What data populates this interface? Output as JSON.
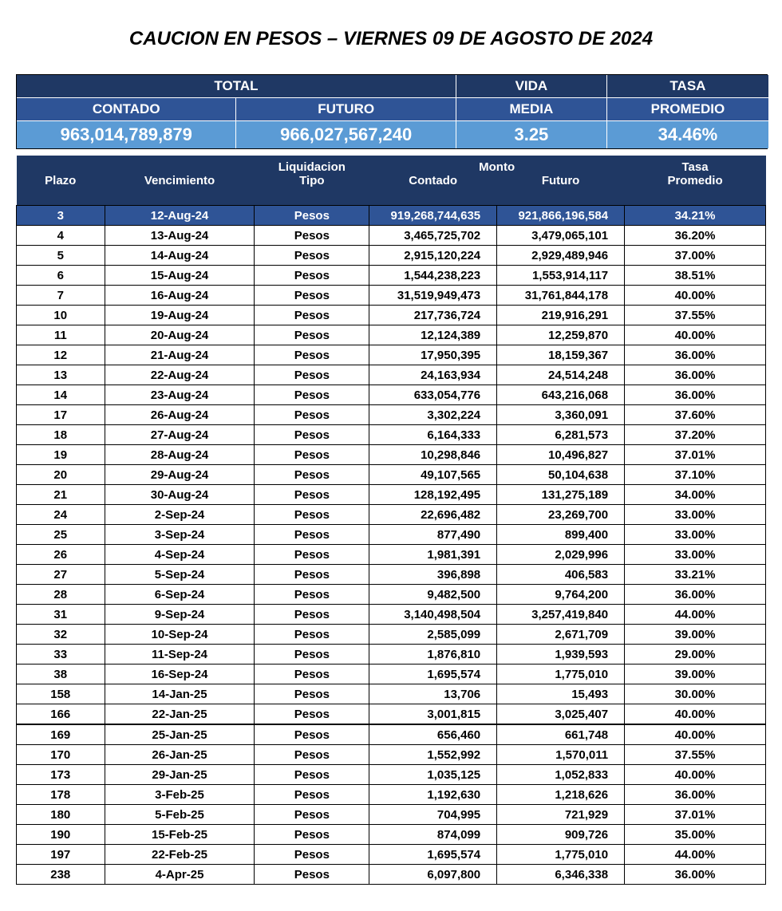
{
  "title": "CAUCION EN PESOS – VIERNES 09 DE AGOSTO DE 2024",
  "summary": {
    "total_label": "TOTAL",
    "contado_label": "CONTADO",
    "futuro_label": "FUTURO",
    "vida_label": "VIDA",
    "media_label": "MEDIA",
    "tasa_label": "TASA",
    "promedio_label": "PROMEDIO",
    "contado_value": "963,014,789,879",
    "futuro_value": "966,027,567,240",
    "vida_value": "3.25",
    "tasa_value": "34.46%",
    "colors": {
      "header_dark_bg": "#1f3864",
      "header_med_bg": "#2f5496",
      "value_bg": "#5b9bd5",
      "text_white": "#ffffff"
    }
  },
  "table": {
    "headers": {
      "plazo": "Plazo",
      "vencimiento": "Vencimiento",
      "liquidacion": "Liquidacion",
      "tipo": "Tipo",
      "monto": "Monto",
      "contado": "Contado",
      "futuro": "Futuro",
      "tasa": "Tasa",
      "promedio": "Promedio"
    },
    "header_bg": "#1f3864",
    "highlight_bg": "#2f5496",
    "rows": [
      {
        "plazo": "3",
        "venc": "12-Aug-24",
        "tipo": "Pesos",
        "cont": "919,268,744,635",
        "fut": "921,866,196,584",
        "tasa": "34.21%",
        "hl": true
      },
      {
        "plazo": "4",
        "venc": "13-Aug-24",
        "tipo": "Pesos",
        "cont": "3,465,725,702",
        "fut": "3,479,065,101",
        "tasa": "36.20%"
      },
      {
        "plazo": "5",
        "venc": "14-Aug-24",
        "tipo": "Pesos",
        "cont": "2,915,120,224",
        "fut": "2,929,489,946",
        "tasa": "37.00%"
      },
      {
        "plazo": "6",
        "venc": "15-Aug-24",
        "tipo": "Pesos",
        "cont": "1,544,238,223",
        "fut": "1,553,914,117",
        "tasa": "38.51%"
      },
      {
        "plazo": "7",
        "venc": "16-Aug-24",
        "tipo": "Pesos",
        "cont": "31,519,949,473",
        "fut": "31,761,844,178",
        "tasa": "40.00%"
      },
      {
        "plazo": "10",
        "venc": "19-Aug-24",
        "tipo": "Pesos",
        "cont": "217,736,724",
        "fut": "219,916,291",
        "tasa": "37.55%"
      },
      {
        "plazo": "11",
        "venc": "20-Aug-24",
        "tipo": "Pesos",
        "cont": "12,124,389",
        "fut": "12,259,870",
        "tasa": "40.00%"
      },
      {
        "plazo": "12",
        "venc": "21-Aug-24",
        "tipo": "Pesos",
        "cont": "17,950,395",
        "fut": "18,159,367",
        "tasa": "36.00%"
      },
      {
        "plazo": "13",
        "venc": "22-Aug-24",
        "tipo": "Pesos",
        "cont": "24,163,934",
        "fut": "24,514,248",
        "tasa": "36.00%"
      },
      {
        "plazo": "14",
        "venc": "23-Aug-24",
        "tipo": "Pesos",
        "cont": "633,054,776",
        "fut": "643,216,068",
        "tasa": "36.00%"
      },
      {
        "plazo": "17",
        "venc": "26-Aug-24",
        "tipo": "Pesos",
        "cont": "3,302,224",
        "fut": "3,360,091",
        "tasa": "37.60%"
      },
      {
        "plazo": "18",
        "venc": "27-Aug-24",
        "tipo": "Pesos",
        "cont": "6,164,333",
        "fut": "6,281,573",
        "tasa": "37.20%"
      },
      {
        "plazo": "19",
        "venc": "28-Aug-24",
        "tipo": "Pesos",
        "cont": "10,298,846",
        "fut": "10,496,827",
        "tasa": "37.01%"
      },
      {
        "plazo": "20",
        "venc": "29-Aug-24",
        "tipo": "Pesos",
        "cont": "49,107,565",
        "fut": "50,104,638",
        "tasa": "37.10%"
      },
      {
        "plazo": "21",
        "venc": "30-Aug-24",
        "tipo": "Pesos",
        "cont": "128,192,495",
        "fut": "131,275,189",
        "tasa": "34.00%"
      },
      {
        "plazo": "24",
        "venc": "2-Sep-24",
        "tipo": "Pesos",
        "cont": "22,696,482",
        "fut": "23,269,700",
        "tasa": "33.00%"
      },
      {
        "plazo": "25",
        "venc": "3-Sep-24",
        "tipo": "Pesos",
        "cont": "877,490",
        "fut": "899,400",
        "tasa": "33.00%"
      },
      {
        "plazo": "26",
        "venc": "4-Sep-24",
        "tipo": "Pesos",
        "cont": "1,981,391",
        "fut": "2,029,996",
        "tasa": "33.00%"
      },
      {
        "plazo": "27",
        "venc": "5-Sep-24",
        "tipo": "Pesos",
        "cont": "396,898",
        "fut": "406,583",
        "tasa": "33.21%"
      },
      {
        "plazo": "28",
        "venc": "6-Sep-24",
        "tipo": "Pesos",
        "cont": "9,482,500",
        "fut": "9,764,200",
        "tasa": "36.00%"
      },
      {
        "plazo": "31",
        "venc": "9-Sep-24",
        "tipo": "Pesos",
        "cont": "3,140,498,504",
        "fut": "3,257,419,840",
        "tasa": "44.00%"
      },
      {
        "plazo": "32",
        "venc": "10-Sep-24",
        "tipo": "Pesos",
        "cont": "2,585,099",
        "fut": "2,671,709",
        "tasa": "39.00%"
      },
      {
        "plazo": "33",
        "venc": "11-Sep-24",
        "tipo": "Pesos",
        "cont": "1,876,810",
        "fut": "1,939,593",
        "tasa": "29.00%"
      },
      {
        "plazo": "38",
        "venc": "16-Sep-24",
        "tipo": "Pesos",
        "cont": "1,695,574",
        "fut": "1,775,010",
        "tasa": "39.00%"
      },
      {
        "plazo": "158",
        "venc": "14-Jan-25",
        "tipo": "Pesos",
        "cont": "13,706",
        "fut": "15,493",
        "tasa": "30.00%"
      },
      {
        "plazo": "166",
        "venc": "22-Jan-25",
        "tipo": "Pesos",
        "cont": "3,001,815",
        "fut": "3,025,407",
        "tasa": "40.00%"
      },
      {
        "plazo": "169",
        "venc": "25-Jan-25",
        "tipo": "Pesos",
        "cont": "656,460",
        "fut": "661,748",
        "tasa": "40.00%",
        "gap": true
      },
      {
        "plazo": "170",
        "venc": "26-Jan-25",
        "tipo": "Pesos",
        "cont": "1,552,992",
        "fut": "1,570,011",
        "tasa": "37.55%"
      },
      {
        "plazo": "173",
        "venc": "29-Jan-25",
        "tipo": "Pesos",
        "cont": "1,035,125",
        "fut": "1,052,833",
        "tasa": "40.00%"
      },
      {
        "plazo": "178",
        "venc": "3-Feb-25",
        "tipo": "Pesos",
        "cont": "1,192,630",
        "fut": "1,218,626",
        "tasa": "36.00%"
      },
      {
        "plazo": "180",
        "venc": "5-Feb-25",
        "tipo": "Pesos",
        "cont": "704,995",
        "fut": "721,929",
        "tasa": "37.01%"
      },
      {
        "plazo": "190",
        "venc": "15-Feb-25",
        "tipo": "Pesos",
        "cont": "874,099",
        "fut": "909,726",
        "tasa": "35.00%"
      },
      {
        "plazo": "197",
        "venc": "22-Feb-25",
        "tipo": "Pesos",
        "cont": "1,695,574",
        "fut": "1,775,010",
        "tasa": "44.00%"
      },
      {
        "plazo": "238",
        "venc": "4-Apr-25",
        "tipo": "Pesos",
        "cont": "6,097,800",
        "fut": "6,346,338",
        "tasa": "36.00%"
      }
    ]
  }
}
